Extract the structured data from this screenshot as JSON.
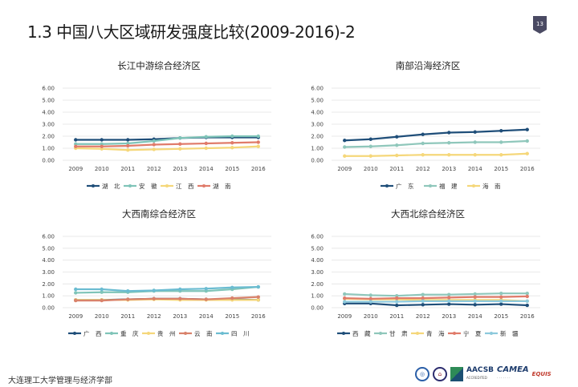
{
  "header": {
    "title": "1.3  中国八大区域研发强度比较(2009-2016)-2",
    "page_number": "13"
  },
  "footer": {
    "department": "大连理工大学管理与经济学部",
    "logos": [
      "dlut-seal-logo",
      "dlut-building-logo",
      "AACSB",
      "ACCREDITED",
      "CAMEA",
      "EQUIS",
      "EFMD"
    ]
  },
  "chart_data": [
    {
      "type": "line",
      "title": "长江中游综合经济区",
      "x": [
        "2009",
        "2010",
        "2011",
        "2012",
        "2013",
        "2014",
        "2015",
        "2016"
      ],
      "yticks": [
        "0.00",
        "1.00",
        "2.00",
        "3.00",
        "4.00",
        "5.00",
        "6.00"
      ],
      "ylim": [
        0,
        6
      ],
      "grid": true,
      "legend_position": "bottom",
      "series": [
        {
          "name": "湖　北",
          "color": "#1f4e79",
          "values": [
            1.7,
            1.7,
            1.7,
            1.75,
            1.85,
            1.9,
            1.9,
            1.9
          ]
        },
        {
          "name": "安　徽",
          "color": "#7fc4b8",
          "values": [
            1.35,
            1.35,
            1.4,
            1.6,
            1.85,
            1.95,
            2.0,
            2.0
          ]
        },
        {
          "name": "江　西",
          "color": "#f5d77a",
          "values": [
            1.0,
            0.95,
            0.85,
            0.9,
            0.95,
            1.0,
            1.05,
            1.15
          ]
        },
        {
          "name": "湖　南",
          "color": "#e07b6a",
          "values": [
            1.15,
            1.15,
            1.2,
            1.3,
            1.35,
            1.4,
            1.45,
            1.5
          ]
        }
      ]
    },
    {
      "type": "line",
      "title": "南部沿海经济区",
      "x": [
        "2009",
        "2010",
        "2011",
        "2012",
        "2013",
        "2014",
        "2015",
        "2016"
      ],
      "yticks": [
        "0.00",
        "1.00",
        "2.00",
        "3.00",
        "4.00",
        "5.00",
        "6.00"
      ],
      "ylim": [
        0,
        6
      ],
      "grid": true,
      "legend_position": "bottom",
      "series": [
        {
          "name": "广　东",
          "color": "#1f4e79",
          "values": [
            1.65,
            1.75,
            1.95,
            2.15,
            2.3,
            2.35,
            2.45,
            2.55
          ]
        },
        {
          "name": "福　建",
          "color": "#8fc7bb",
          "values": [
            1.1,
            1.15,
            1.25,
            1.4,
            1.45,
            1.5,
            1.5,
            1.6
          ]
        },
        {
          "name": "海　南",
          "color": "#f5d77a",
          "values": [
            0.35,
            0.35,
            0.4,
            0.45,
            0.45,
            0.45,
            0.45,
            0.55
          ]
        }
      ]
    },
    {
      "type": "line",
      "title": "大西南综合经济区",
      "x": [
        "2009",
        "2010",
        "2011",
        "2012",
        "2013",
        "2014",
        "2015",
        "2016"
      ],
      "yticks": [
        "0.00",
        "1.00",
        "2.00",
        "3.00",
        "4.00",
        "5.00",
        "6.00"
      ],
      "ylim": [
        0,
        6
      ],
      "grid": true,
      "legend_position": "bottom",
      "series": [
        {
          "name": "广　西",
          "color": "#1f4e79",
          "values": [
            0.65,
            0.65,
            0.7,
            0.75,
            0.75,
            0.7,
            0.7,
            0.65
          ]
        },
        {
          "name": "重　庆",
          "color": "#7fc4b8",
          "values": [
            1.25,
            1.3,
            1.3,
            1.4,
            1.4,
            1.4,
            1.55,
            1.75
          ]
        },
        {
          "name": "贵　州",
          "color": "#f5d77a",
          "values": [
            0.65,
            0.65,
            0.65,
            0.7,
            0.65,
            0.65,
            0.65,
            0.65
          ]
        },
        {
          "name": "云　南",
          "color": "#d9826b",
          "values": [
            0.6,
            0.6,
            0.7,
            0.75,
            0.75,
            0.7,
            0.8,
            0.9
          ]
        },
        {
          "name": "四　川",
          "color": "#6bbcd1",
          "values": [
            1.55,
            1.55,
            1.4,
            1.45,
            1.55,
            1.6,
            1.7,
            1.75
          ]
        }
      ]
    },
    {
      "type": "line",
      "title": "大西北综合经济区",
      "x": [
        "2009",
        "2010",
        "2011",
        "2012",
        "2013",
        "2014",
        "2015",
        "2016"
      ],
      "yticks": [
        "0.00",
        "1.00",
        "2.00",
        "3.00",
        "4.00",
        "5.00",
        "6.00"
      ],
      "ylim": [
        0,
        6
      ],
      "grid": true,
      "legend_position": "bottom",
      "series": [
        {
          "name": "西　藏",
          "color": "#1f4e79",
          "values": [
            0.35,
            0.35,
            0.2,
            0.25,
            0.3,
            0.25,
            0.3,
            0.2
          ]
        },
        {
          "name": "甘　肃",
          "color": "#8fc7bb",
          "values": [
            1.15,
            1.05,
            1.0,
            1.1,
            1.1,
            1.15,
            1.2,
            1.2
          ]
        },
        {
          "name": "青　海",
          "color": "#f5d77a",
          "values": [
            0.75,
            0.7,
            0.7,
            0.65,
            0.65,
            0.65,
            0.65,
            0.55
          ]
        },
        {
          "name": "宁　夏",
          "color": "#e07b6a",
          "values": [
            0.8,
            0.75,
            0.8,
            0.8,
            0.85,
            0.9,
            0.9,
            0.95
          ]
        },
        {
          "name": "新　疆",
          "color": "#8cc9dc",
          "values": [
            0.5,
            0.5,
            0.5,
            0.55,
            0.55,
            0.55,
            0.55,
            0.55
          ]
        }
      ]
    }
  ]
}
